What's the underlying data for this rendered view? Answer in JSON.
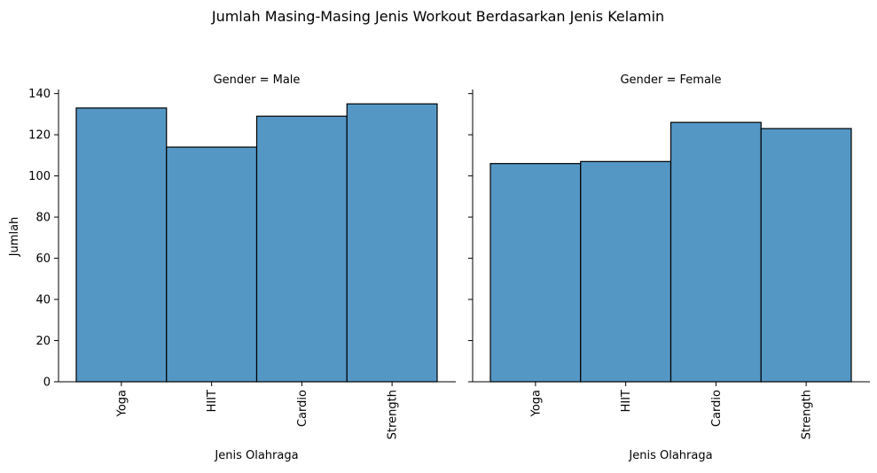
{
  "figure": {
    "title": "Jumlah Masing-Masing Jenis Workout Berdasarkan Jenis Kelamin"
  },
  "chart_data": [
    {
      "type": "bar",
      "title": "Gender = Male",
      "xlabel": "Jenis Olahraga",
      "ylabel": "Jumlah",
      "categories": [
        "Yoga",
        "HIIT",
        "Cardio",
        "Strength"
      ],
      "values": [
        133,
        114,
        129,
        135
      ],
      "ylim": [
        0,
        142
      ],
      "yticks": [
        0,
        20,
        40,
        60,
        80,
        100,
        120,
        140
      ],
      "bar_color": "#5497c5",
      "edge_color": "#000000",
      "grid": false
    },
    {
      "type": "bar",
      "title": "Gender = Female",
      "xlabel": "Jenis Olahraga",
      "ylabel": "",
      "categories": [
        "Yoga",
        "HIIT",
        "Cardio",
        "Strength"
      ],
      "values": [
        106,
        107,
        126,
        123
      ],
      "ylim": [
        0,
        142
      ],
      "yticks": [
        0,
        20,
        40,
        60,
        80,
        100,
        120,
        140
      ],
      "bar_color": "#5497c5",
      "edge_color": "#000000",
      "grid": false
    }
  ]
}
